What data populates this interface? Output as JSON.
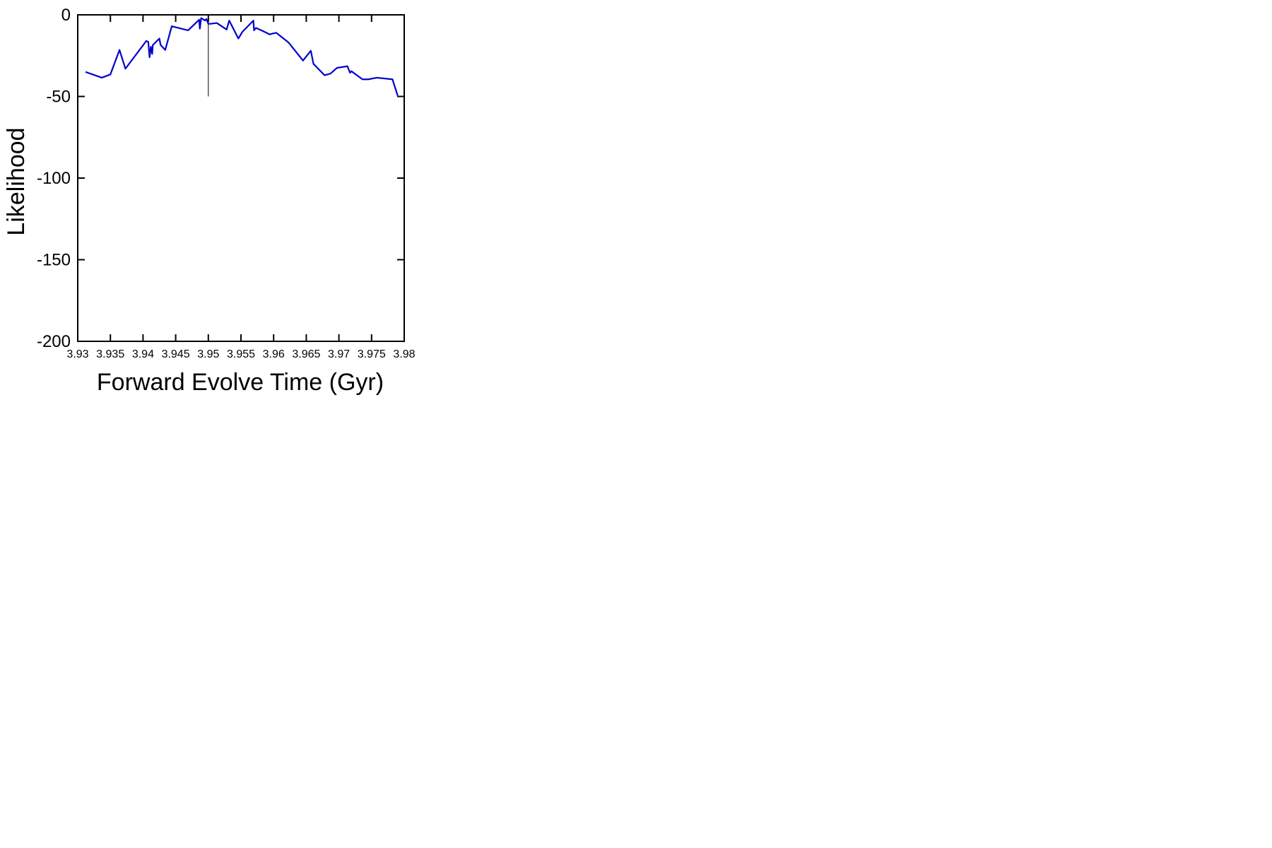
{
  "chart_data": {
    "type": "line",
    "title": "",
    "xlabel": "Forward Evolve Time (Gyr)",
    "ylabel": "Likelihood",
    "xlim": [
      3.93,
      3.98
    ],
    "ylim": [
      -200,
      0
    ],
    "grid": false,
    "x_ticks": [
      {
        "value": 3.93,
        "label": "3.93"
      },
      {
        "value": 3.935,
        "label": "3.935"
      },
      {
        "value": 3.94,
        "label": "3.94"
      },
      {
        "value": 3.945,
        "label": "3.945"
      },
      {
        "value": 3.95,
        "label": "3.95"
      },
      {
        "value": 3.955,
        "label": "3.955"
      },
      {
        "value": 3.96,
        "label": "3.96"
      },
      {
        "value": 3.965,
        "label": "3.965"
      },
      {
        "value": 3.97,
        "label": "3.97"
      },
      {
        "value": 3.975,
        "label": "3.975"
      },
      {
        "value": 3.98,
        "label": "3.98"
      }
    ],
    "y_ticks": [
      {
        "value": 0,
        "label": "0"
      },
      {
        "value": -50,
        "label": "-50"
      },
      {
        "value": -100,
        "label": "-100"
      },
      {
        "value": -150,
        "label": "-150"
      },
      {
        "value": -200,
        "label": "-200"
      }
    ],
    "series": [
      {
        "color": "#0000cc",
        "x": [
          3.9312,
          3.9337,
          3.935,
          3.9364,
          3.9373,
          3.9405,
          3.9408,
          3.941,
          3.9412,
          3.9414,
          3.9415,
          3.9425,
          3.9427,
          3.9434,
          3.9444,
          3.9469,
          3.9486,
          3.9487,
          3.9489,
          3.9495,
          3.9497,
          3.95,
          3.9503,
          3.9513,
          3.9528,
          3.9532,
          3.9546,
          3.9552,
          3.9569,
          3.957,
          3.9573,
          3.9584,
          3.9594,
          3.9598,
          3.9604,
          3.9623,
          3.9645,
          3.9657,
          3.9661,
          3.9678,
          3.9687,
          3.9697,
          3.9713,
          3.9717,
          3.9719,
          3.9736,
          3.9745,
          3.9758,
          3.9782,
          3.979
        ],
        "y": [
          -35,
          -38.5,
          -36.5,
          -21.5,
          -33,
          -16,
          -16.5,
          -26,
          -19.5,
          -24,
          -18.5,
          -14.5,
          -18.5,
          -21.5,
          -7,
          -9.5,
          -3,
          -8.5,
          -2,
          -3.5,
          -2.5,
          -5.5,
          -5.5,
          -5,
          -9,
          -3.5,
          -14.5,
          -10.5,
          -3.5,
          -9.5,
          -8,
          -10,
          -12,
          -11.5,
          -11,
          -17,
          -28,
          -22,
          -30,
          -37,
          -36,
          -32.5,
          -31.5,
          -35.5,
          -34.5,
          -39.5,
          -39.5,
          -38.5,
          -39.5,
          -49.5
        ]
      }
    ],
    "vertical_marker": {
      "x": 3.95,
      "y_from": -50,
      "y_to": 0,
      "color": "#000000"
    }
  }
}
